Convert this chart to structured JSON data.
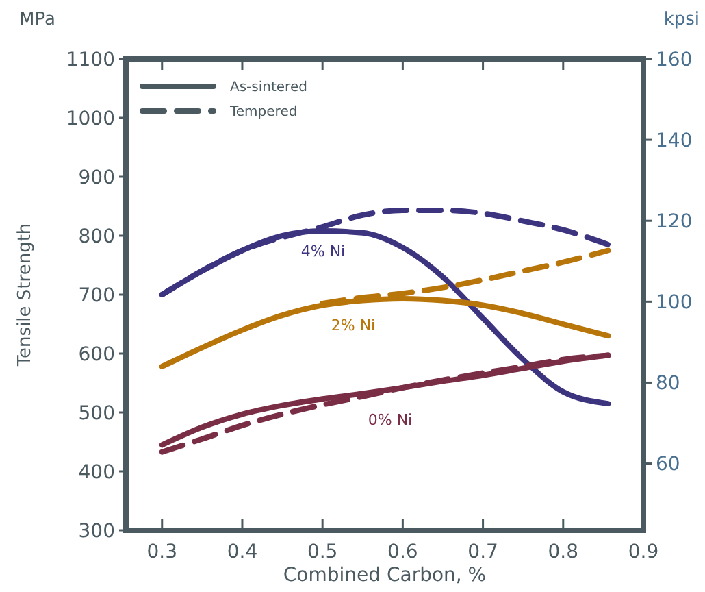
{
  "chart_data": {
    "type": "line",
    "xlabel": "Combined Carbon, %",
    "ylabel": "Tensile Strength",
    "y2label": "kpsi",
    "annotations": [
      "MPa",
      "As-sintered",
      "Tempered",
      "4% Ni",
      "2% Ni",
      "0% Ni"
    ],
    "xlim": [
      0.255,
      0.9
    ],
    "xticks": [
      0.3,
      0.4,
      0.5,
      0.6,
      0.7,
      0.8,
      0.9
    ],
    "ylim": [
      300,
      1100
    ],
    "yticks": [
      300,
      400,
      500,
      600,
      700,
      800,
      900,
      1000,
      1100
    ],
    "y2lim": [
      43.5,
      160
    ],
    "y2ticks": [
      60,
      80,
      100,
      120,
      140,
      160
    ],
    "grid": false,
    "marker": "none",
    "series": [
      {
        "color": "#3d3480",
        "line_style": "solid",
        "x": [
          0.3,
          0.35,
          0.4,
          0.45,
          0.5,
          0.55,
          0.6,
          0.65,
          0.7,
          0.75,
          0.8,
          0.856
        ],
        "values": [
          700,
          740,
          775,
          800,
          808,
          805,
          780,
          730,
          660,
          590,
          535,
          515
        ]
      },
      {
        "color": "#3d3480",
        "line_style": "dashed",
        "x": [
          0.3,
          0.4,
          0.5,
          0.55,
          0.6,
          0.65,
          0.7,
          0.75,
          0.8,
          0.856
        ],
        "values": [
          700,
          775,
          815,
          835,
          843,
          843,
          838,
          825,
          810,
          785
        ]
      },
      {
        "color": "#b8750a",
        "line_style": "solid",
        "x": [
          0.3,
          0.35,
          0.4,
          0.45,
          0.5,
          0.55,
          0.6,
          0.65,
          0.7,
          0.75,
          0.8,
          0.856
        ],
        "values": [
          578,
          610,
          640,
          665,
          682,
          690,
          693,
          690,
          682,
          668,
          650,
          630
        ]
      },
      {
        "color": "#b8750a",
        "line_style": "dashed",
        "x": [
          0.5,
          0.55,
          0.6,
          0.65,
          0.7,
          0.75,
          0.8,
          0.856
        ],
        "values": [
          685,
          695,
          702,
          712,
          725,
          740,
          755,
          775
        ]
      },
      {
        "color": "#7a2e45",
        "line_style": "solid",
        "x": [
          0.3,
          0.35,
          0.4,
          0.45,
          0.5,
          0.55,
          0.6,
          0.65,
          0.7,
          0.75,
          0.8,
          0.856
        ],
        "values": [
          445,
          475,
          497,
          512,
          523,
          532,
          542,
          553,
          563,
          575,
          587,
          597
        ]
      },
      {
        "color": "#7a2e45",
        "line_style": "dashed",
        "x": [
          0.3,
          0.35,
          0.4,
          0.45,
          0.5,
          0.55,
          0.6,
          0.65,
          0.7,
          0.75,
          0.8,
          0.856
        ],
        "values": [
          433,
          455,
          478,
          497,
          513,
          527,
          542,
          555,
          567,
          578,
          590,
          597
        ]
      }
    ]
  }
}
